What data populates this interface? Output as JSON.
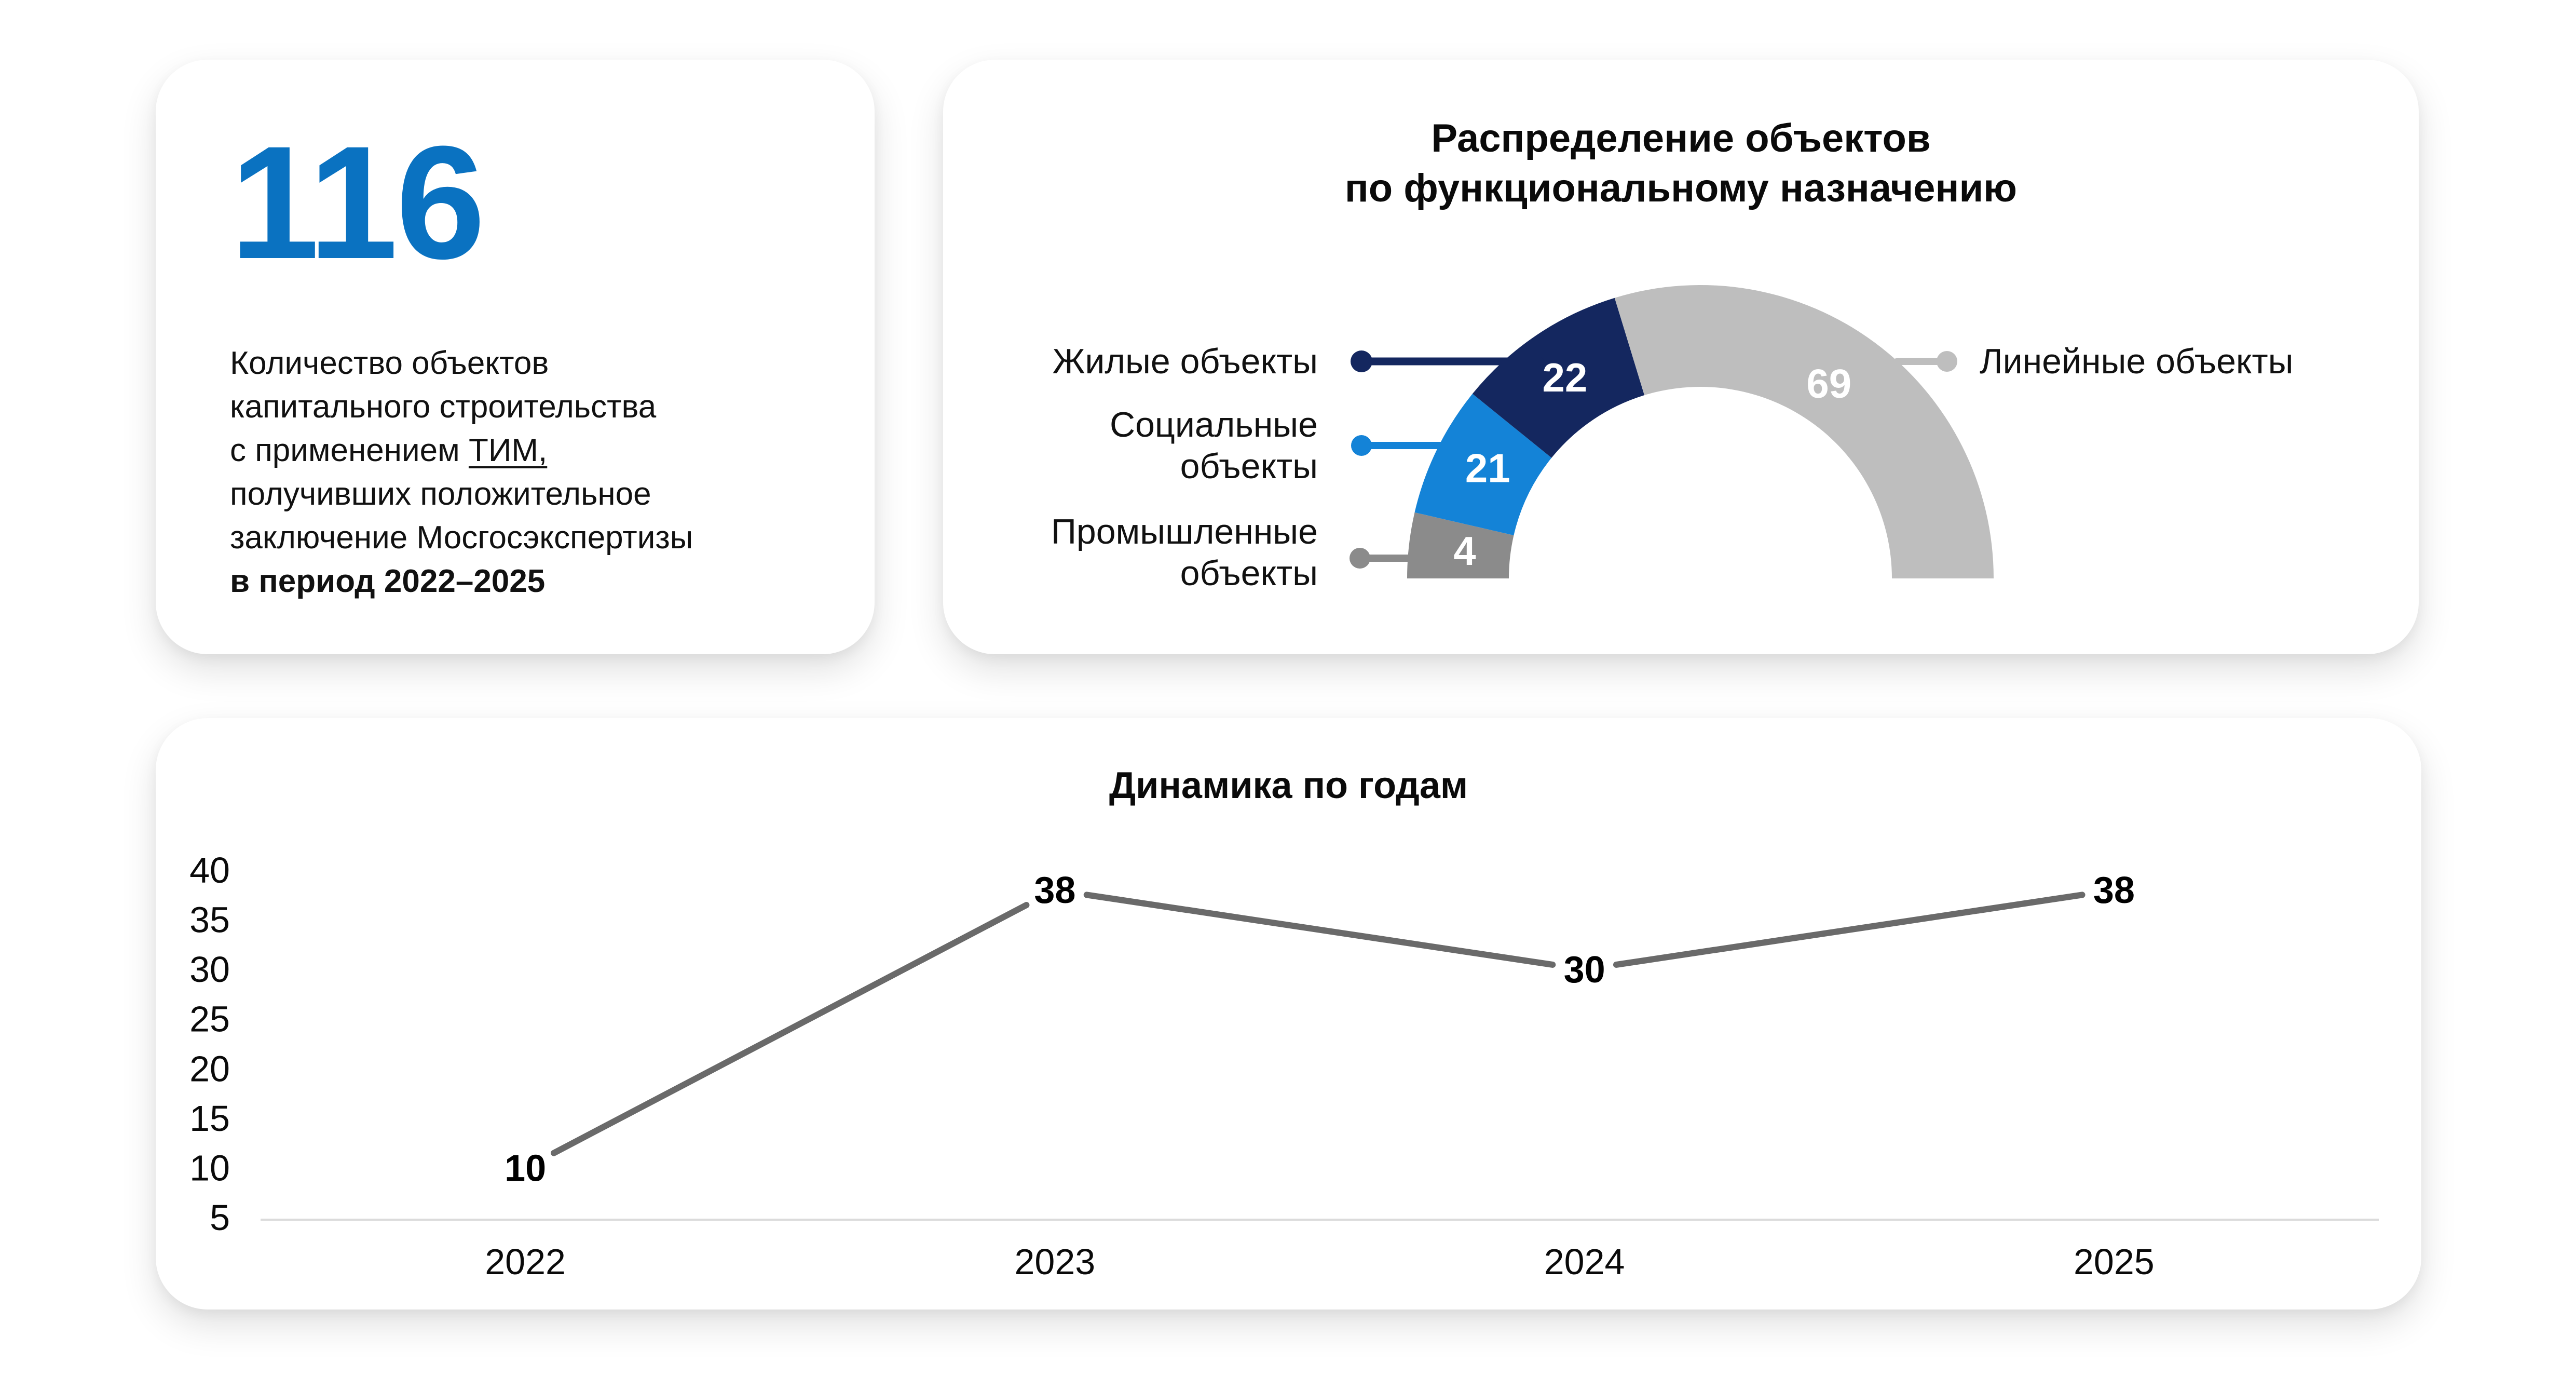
{
  "page": {
    "background": "#FFFFFF"
  },
  "stat_card": {
    "value": "116",
    "value_color": "#0A72C1",
    "description": {
      "line1": "Количество объектов",
      "line2": "капитального строительства",
      "line3_prefix": "с применением ",
      "line3_underlined": "ТИМ,",
      "line4": "получивших положительное",
      "line5": "заключение Мосгосэкспертизы",
      "line6_bold": "в период 2022–2025"
    }
  },
  "chart_data": [
    {
      "type": "pie",
      "variant": "half-donut",
      "title_line1": "Распределение объектов",
      "title_line2": "по функциональному назначению",
      "total": 116,
      "value_label_color": "#FFFFFF",
      "segments": [
        {
          "name": "Жилые объекты",
          "value": 22,
          "color": "#14275F",
          "label_lines": [
            "Жилые объекты"
          ],
          "side": "left"
        },
        {
          "name": "Социальные объекты",
          "value": 21,
          "color": "#1483D7",
          "label_lines": [
            "Социальные",
            "объекты"
          ],
          "side": "left"
        },
        {
          "name": "Промышленные объекты",
          "value": 4,
          "color": "#8B8B8B",
          "label_lines": [
            "Промышленные",
            "объекты"
          ],
          "side": "left"
        },
        {
          "name": "Линейные объекты",
          "value": 69,
          "color": "#BEBEBE",
          "label_lines": [
            "Линейные объекты"
          ],
          "side": "right"
        }
      ]
    },
    {
      "type": "line",
      "title": "Динамика по годам",
      "categories": [
        "2022",
        "2023",
        "2024",
        "2025"
      ],
      "values": [
        10,
        38,
        30,
        38
      ],
      "yticks": [
        40,
        35,
        30,
        25,
        20,
        15,
        10,
        5
      ],
      "ylim": [
        5,
        40
      ],
      "grid": false,
      "line_color": "#6A6A6A",
      "axis_color": "#DBDBDB",
      "label_color": "#000000"
    }
  ]
}
